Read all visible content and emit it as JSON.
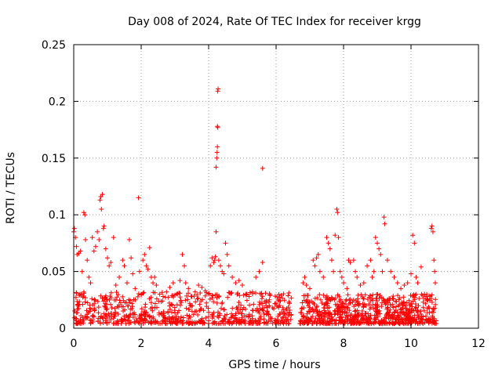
{
  "chart_data": {
    "type": "scatter",
    "title": "Day 008 of 2024, Rate Of TEC Index for receiver krgg",
    "xlabel": "GPS time / hours",
    "ylabel": "ROTI / TECUs",
    "xlim": [
      0,
      12
    ],
    "ylim": [
      0,
      0.25
    ],
    "x_ticks": [
      0,
      2,
      4,
      6,
      8,
      10,
      12
    ],
    "x_tick_labels": [
      "0",
      "2",
      "4",
      "6",
      "8",
      "10",
      "12"
    ],
    "y_ticks": [
      0,
      0.05,
      0.1,
      0.15,
      0.2,
      0.25
    ],
    "y_tick_labels": [
      "0",
      "0.05",
      "0.1",
      "0.15",
      "0.2",
      "0.25"
    ],
    "grid": true,
    "marker": "+",
    "marker_color": "#ff0000",
    "series": [
      {
        "name": "ROTI",
        "points": [
          [
            0.0,
            0.085
          ],
          [
            0.02,
            0.088
          ],
          [
            0.05,
            0.08
          ],
          [
            0.08,
            0.072
          ],
          [
            0.1,
            0.065
          ],
          [
            0.15,
            0.066
          ],
          [
            0.2,
            0.068
          ],
          [
            0.25,
            0.05
          ],
          [
            0.3,
            0.102
          ],
          [
            0.33,
            0.1
          ],
          [
            0.35,
            0.078
          ],
          [
            0.4,
            0.06
          ],
          [
            0.45,
            0.045
          ],
          [
            0.5,
            0.04
          ],
          [
            0.55,
            0.08
          ],
          [
            0.6,
            0.068
          ],
          [
            0.65,
            0.072
          ],
          [
            0.7,
            0.085
          ],
          [
            0.75,
            0.078
          ],
          [
            0.78,
            0.113
          ],
          [
            0.8,
            0.116
          ],
          [
            0.85,
            0.118
          ],
          [
            0.82,
            0.105
          ],
          [
            0.88,
            0.088
          ],
          [
            0.9,
            0.09
          ],
          [
            0.95,
            0.07
          ],
          [
            1.0,
            0.062
          ],
          [
            1.05,
            0.055
          ],
          [
            1.1,
            0.058
          ],
          [
            1.18,
            0.08
          ],
          [
            1.25,
            0.038
          ],
          [
            1.35,
            0.045
          ],
          [
            1.45,
            0.06
          ],
          [
            1.5,
            0.055
          ],
          [
            1.58,
            0.04
          ],
          [
            1.65,
            0.078
          ],
          [
            1.7,
            0.062
          ],
          [
            1.75,
            0.048
          ],
          [
            1.82,
            0.035
          ],
          [
            1.92,
            0.115
          ],
          [
            1.95,
            0.05
          ],
          [
            2.0,
            0.03
          ],
          [
            2.05,
            0.06
          ],
          [
            2.1,
            0.065
          ],
          [
            2.15,
            0.055
          ],
          [
            2.2,
            0.052
          ],
          [
            2.25,
            0.071
          ],
          [
            2.3,
            0.045
          ],
          [
            2.35,
            0.04
          ],
          [
            2.4,
            0.045
          ],
          [
            2.45,
            0.038
          ],
          [
            2.55,
            0.03
          ],
          [
            2.65,
            0.028
          ],
          [
            2.75,
            0.032
          ],
          [
            2.85,
            0.036
          ],
          [
            2.95,
            0.04
          ],
          [
            3.05,
            0.03
          ],
          [
            3.15,
            0.042
          ],
          [
            3.22,
            0.065
          ],
          [
            3.28,
            0.055
          ],
          [
            3.32,
            0.04
          ],
          [
            3.4,
            0.035
          ],
          [
            3.5,
            0.028
          ],
          [
            3.6,
            0.032
          ],
          [
            3.7,
            0.038
          ],
          [
            3.8,
            0.036
          ],
          [
            3.9,
            0.033
          ],
          [
            4.0,
            0.03
          ],
          [
            4.05,
            0.055
          ],
          [
            4.1,
            0.062
          ],
          [
            4.15,
            0.058
          ],
          [
            4.18,
            0.06
          ],
          [
            4.2,
            0.063
          ],
          [
            4.22,
            0.085
          ],
          [
            4.22,
            0.142
          ],
          [
            4.24,
            0.15
          ],
          [
            4.25,
            0.155
          ],
          [
            4.26,
            0.16
          ],
          [
            4.26,
            0.178
          ],
          [
            4.27,
            0.177
          ],
          [
            4.27,
            0.209
          ],
          [
            4.28,
            0.211
          ],
          [
            4.3,
            0.06
          ],
          [
            4.35,
            0.055
          ],
          [
            4.4,
            0.05
          ],
          [
            4.45,
            0.048
          ],
          [
            4.5,
            0.075
          ],
          [
            4.55,
            0.065
          ],
          [
            4.6,
            0.055
          ],
          [
            4.7,
            0.045
          ],
          [
            4.8,
            0.04
          ],
          [
            4.9,
            0.042
          ],
          [
            5.0,
            0.038
          ],
          [
            5.1,
            0.03
          ],
          [
            5.2,
            0.028
          ],
          [
            5.3,
            0.032
          ],
          [
            5.4,
            0.045
          ],
          [
            5.5,
            0.05
          ],
          [
            5.6,
            0.058
          ],
          [
            5.6,
            0.141
          ],
          [
            5.7,
            0.02
          ],
          [
            5.8,
            0.025
          ],
          [
            5.9,
            0.018
          ],
          [
            6.0,
            0.022
          ],
          [
            6.1,
            0.02
          ],
          [
            6.2,
            0.018
          ],
          [
            6.3,
            0.016
          ],
          [
            6.4,
            0.014
          ],
          [
            6.45,
            0.012
          ],
          [
            6.8,
            0.04
          ],
          [
            6.85,
            0.045
          ],
          [
            6.9,
            0.038
          ],
          [
            7.0,
            0.035
          ],
          [
            7.1,
            0.06
          ],
          [
            7.15,
            0.055
          ],
          [
            7.2,
            0.062
          ],
          [
            7.25,
            0.065
          ],
          [
            7.3,
            0.05
          ],
          [
            7.4,
            0.045
          ],
          [
            7.5,
            0.08
          ],
          [
            7.55,
            0.075
          ],
          [
            7.6,
            0.07
          ],
          [
            7.65,
            0.06
          ],
          [
            7.7,
            0.05
          ],
          [
            7.75,
            0.082
          ],
          [
            7.8,
            0.105
          ],
          [
            7.82,
            0.102
          ],
          [
            7.85,
            0.08
          ],
          [
            7.9,
            0.05
          ],
          [
            7.95,
            0.045
          ],
          [
            8.0,
            0.04
          ],
          [
            8.1,
            0.035
          ],
          [
            8.15,
            0.06
          ],
          [
            8.2,
            0.058
          ],
          [
            8.3,
            0.06
          ],
          [
            8.35,
            0.05
          ],
          [
            8.4,
            0.045
          ],
          [
            8.5,
            0.038
          ],
          [
            8.6,
            0.04
          ],
          [
            8.7,
            0.055
          ],
          [
            8.8,
            0.06
          ],
          [
            8.85,
            0.045
          ],
          [
            8.9,
            0.05
          ],
          [
            8.95,
            0.08
          ],
          [
            9.0,
            0.075
          ],
          [
            9.05,
            0.07
          ],
          [
            9.1,
            0.065
          ],
          [
            9.15,
            0.05
          ],
          [
            9.2,
            0.098
          ],
          [
            9.22,
            0.092
          ],
          [
            9.3,
            0.06
          ],
          [
            9.4,
            0.05
          ],
          [
            9.5,
            0.045
          ],
          [
            9.6,
            0.04
          ],
          [
            9.7,
            0.035
          ],
          [
            9.8,
            0.038
          ],
          [
            9.9,
            0.04
          ],
          [
            10.0,
            0.048
          ],
          [
            10.05,
            0.082
          ],
          [
            10.1,
            0.075
          ],
          [
            10.15,
            0.045
          ],
          [
            10.2,
            0.04
          ],
          [
            10.3,
            0.054
          ],
          [
            10.4,
            0.03
          ],
          [
            10.5,
            0.025
          ],
          [
            10.6,
            0.088
          ],
          [
            10.62,
            0.09
          ],
          [
            10.65,
            0.085
          ],
          [
            10.68,
            0.06
          ],
          [
            10.7,
            0.05
          ],
          [
            10.72,
            0.04
          ]
        ]
      }
    ],
    "dense_band_note": "Dense band of points between ~0.002 and ~0.04 TECU from 0 to 10.7 h, with a gap near 6.5-6.7 h",
    "dense_band": {
      "ranges": [
        [
          0.0,
          6.45,
          0.004,
          0.032
        ],
        [
          6.7,
          10.75,
          0.004,
          0.03
        ]
      ],
      "count": 1400,
      "seed": 8
    }
  }
}
